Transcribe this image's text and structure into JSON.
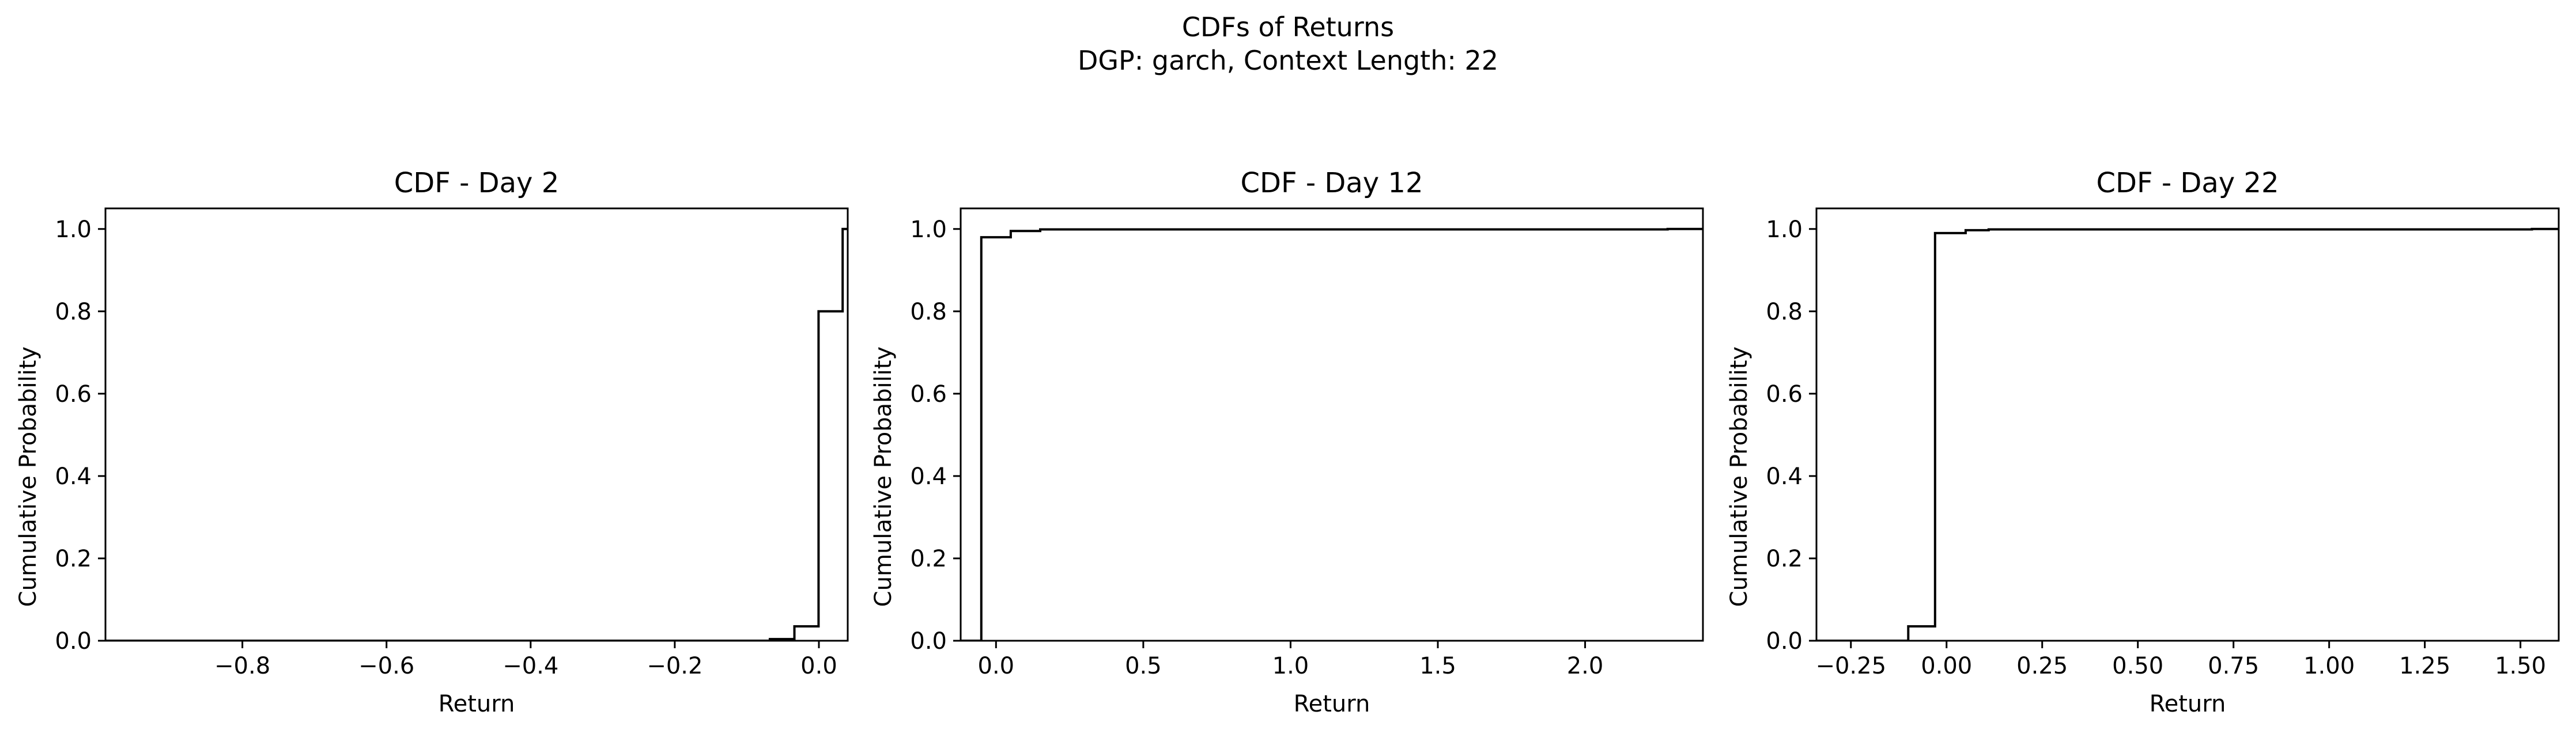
{
  "figure": {
    "title_line1": "CDFs of Returns",
    "title_line2": "DGP: garch, Context Length: 22"
  },
  "chart_data": [
    {
      "type": "line",
      "drawstyle": "steps-post",
      "title": "CDF - Day 2",
      "xlabel": "Return",
      "ylabel": "Cumulative Probability",
      "xlim": [
        -0.99,
        0.04
      ],
      "ylim": [
        0.0,
        1.05
      ],
      "xticks": [
        -0.8,
        -0.6,
        -0.4,
        -0.2,
        0.0
      ],
      "xtick_labels": [
        "−0.8",
        "−0.6",
        "−0.4",
        "−0.2",
        "0.0"
      ],
      "yticks": [
        0.0,
        0.2,
        0.4,
        0.6,
        0.8,
        1.0
      ],
      "ytick_labels": [
        "0.0",
        "0.2",
        "0.4",
        "0.6",
        "0.8",
        "1.0"
      ],
      "grid": false,
      "color": "#000000",
      "x": [
        -0.99,
        -0.068,
        -0.034,
        -0.0005,
        0.033,
        0.04
      ],
      "y": [
        0.0,
        0.004,
        0.035,
        0.8,
        1.0,
        1.0
      ]
    },
    {
      "type": "line",
      "drawstyle": "steps-post",
      "title": "CDF - Day 12",
      "xlabel": "Return",
      "ylabel": "Cumulative Probability",
      "xlim": [
        -0.12,
        2.4
      ],
      "ylim": [
        0.0,
        1.05
      ],
      "xticks": [
        0.0,
        0.5,
        1.0,
        1.5,
        2.0
      ],
      "xtick_labels": [
        "0.0",
        "0.5",
        "1.0",
        "1.5",
        "2.0"
      ],
      "yticks": [
        0.0,
        0.2,
        0.4,
        0.6,
        0.8,
        1.0
      ],
      "ytick_labels": [
        "0.0",
        "0.2",
        "0.4",
        "0.6",
        "0.8",
        "1.0"
      ],
      "grid": false,
      "color": "#000000",
      "x": [
        -0.12,
        -0.05,
        0.05,
        0.15,
        2.28,
        2.4
      ],
      "y": [
        0.0,
        0.98,
        0.995,
        0.999,
        1.0,
        1.0
      ]
    },
    {
      "type": "line",
      "drawstyle": "steps-post",
      "title": "CDF - Day 22",
      "xlabel": "Return",
      "ylabel": "Cumulative Probability",
      "xlim": [
        -0.34,
        1.6
      ],
      "ylim": [
        0.0,
        1.05
      ],
      "xticks": [
        -0.25,
        0.0,
        0.25,
        0.5,
        0.75,
        1.0,
        1.25,
        1.5
      ],
      "xtick_labels": [
        "−0.25",
        "0.00",
        "0.25",
        "0.50",
        "0.75",
        "1.00",
        "1.25",
        "1.50"
      ],
      "yticks": [
        0.0,
        0.2,
        0.4,
        0.6,
        0.8,
        1.0
      ],
      "ytick_labels": [
        "0.0",
        "0.2",
        "0.4",
        "0.6",
        "0.8",
        "1.0"
      ],
      "grid": false,
      "color": "#000000",
      "x": [
        -0.34,
        -0.1,
        -0.03,
        0.05,
        0.11,
        1.53,
        1.6
      ],
      "y": [
        0.0,
        0.035,
        0.99,
        0.997,
        0.999,
        1.0,
        1.0
      ]
    }
  ]
}
